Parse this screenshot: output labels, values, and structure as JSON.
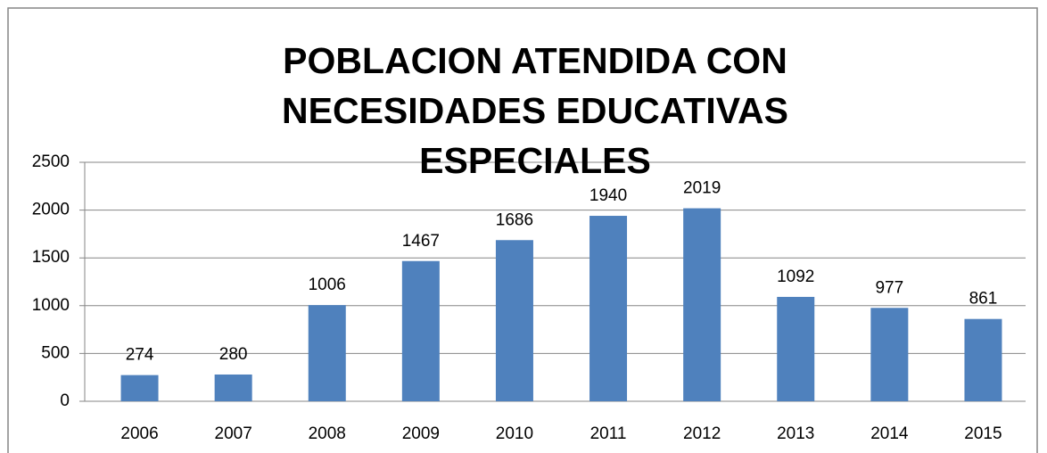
{
  "chart_data": {
    "type": "bar",
    "title": "POBLACION ATENDIDA CON NECESIDADES EDUCATIVAS ESPECIALES",
    "categories": [
      "2006",
      "2007",
      "2008",
      "2009",
      "2010",
      "2011",
      "2012",
      "2013",
      "2014",
      "2015"
    ],
    "values": [
      274,
      280,
      1006,
      1467,
      1686,
      1940,
      2019,
      1092,
      977,
      861
    ],
    "color": "#4f81bd",
    "ylim": [
      0,
      2500
    ],
    "yticks": [
      0,
      500,
      1000,
      1500,
      2000,
      2500
    ],
    "grid": true
  }
}
